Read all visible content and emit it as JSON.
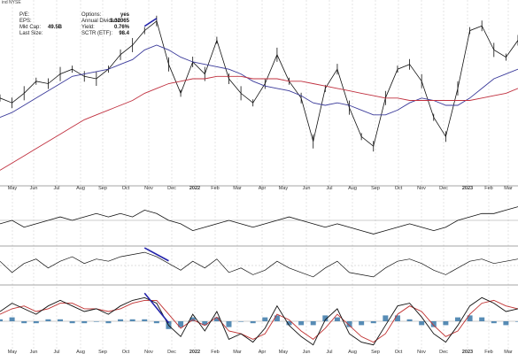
{
  "header_text": "ind NYSE",
  "info_left": [
    {
      "label": "P/E:",
      "value": ""
    },
    {
      "label": "EPS:",
      "value": ""
    },
    {
      "label": "Mkt Cap:",
      "value": "49.5B"
    },
    {
      "label": "Last Size:",
      "value": ""
    }
  ],
  "info_right": [
    {
      "label": "Options:",
      "value": "yes"
    },
    {
      "label": "Annual Dividend:",
      "value": "1.32065"
    },
    {
      "label": "Yield:",
      "value": "0.76%"
    },
    {
      "label": "SCTR (ETF):",
      "value": "98.4"
    }
  ],
  "colors": {
    "price": "#111111",
    "ma_fast": "#3a3a9a",
    "ma_slow": "#c0303f",
    "trendline": "#2222aa",
    "histogram": "#3a78a8",
    "macd_signal": "#c03030",
    "grid": "#cccccc"
  },
  "chart_data": [
    {
      "type": "line",
      "panel": "price",
      "x_tick_labels": [
        "May",
        "Jun",
        "Jul",
        "Aug",
        "Sep",
        "Oct",
        "Nov",
        "Dec",
        "2022",
        "Feb",
        "Mar",
        "Apr",
        "May",
        "Jun",
        "Jul",
        "Aug",
        "Sep",
        "Oct",
        "Nov",
        "Dec",
        "2023",
        "Feb",
        "Mar"
      ],
      "series": [
        {
          "role": "price",
          "values": [
            48,
            46,
            50,
            55,
            54,
            58,
            60,
            57,
            56,
            60,
            66,
            70,
            76,
            80,
            62,
            50,
            63,
            58,
            72,
            56,
            50,
            46,
            54,
            66,
            55,
            48,
            30,
            52,
            60,
            44,
            32,
            28,
            48,
            60,
            62,
            55,
            40,
            32,
            52,
            76,
            78,
            68,
            65,
            72
          ]
        },
        {
          "role": "moving-average-fast",
          "values": [
            40,
            42,
            45,
            48,
            51,
            54,
            57,
            58,
            59,
            60,
            62,
            64,
            68,
            70,
            68,
            65,
            63,
            62,
            61,
            60,
            58,
            55,
            53,
            52,
            51,
            49,
            46,
            45,
            46,
            45,
            43,
            41,
            41,
            43,
            46,
            48,
            47,
            45,
            45,
            48,
            52,
            56,
            58,
            60
          ]
        },
        {
          "role": "moving-average-slow",
          "values": [
            18,
            21,
            24,
            27,
            30,
            33,
            36,
            39,
            41,
            43,
            45,
            47,
            50,
            52,
            54,
            55,
            56,
            56,
            57,
            57,
            57,
            56,
            56,
            56,
            55,
            55,
            54,
            53,
            52,
            51,
            50,
            49,
            48,
            48,
            47,
            47,
            47,
            47,
            47,
            47,
            48,
            49,
            50,
            52
          ]
        }
      ],
      "annotations": [
        {
          "type": "trendline",
          "from_index": 12,
          "to_index": 13
        }
      ]
    },
    {
      "type": "line",
      "panel": "indicator-1",
      "series": [
        {
          "role": "indicator",
          "values": [
            0,
            1,
            -1,
            0,
            1,
            2,
            1,
            2,
            3,
            2,
            3,
            2,
            4,
            3,
            1,
            0,
            -2,
            -1,
            0,
            1,
            0,
            -1,
            0,
            1,
            2,
            1,
            0,
            -1,
            0,
            -1,
            -2,
            -3,
            -2,
            -1,
            0,
            -1,
            -2,
            -1,
            1,
            2,
            3,
            3,
            4,
            5
          ]
        }
      ]
    },
    {
      "type": "line",
      "panel": "indicator-2",
      "series": [
        {
          "role": "indicator",
          "values": [
            2,
            -3,
            1,
            3,
            -1,
            2,
            4,
            1,
            3,
            2,
            4,
            5,
            6,
            4,
            1,
            -2,
            2,
            -1,
            3,
            -3,
            -1,
            -4,
            -2,
            2,
            -1,
            -3,
            -5,
            -1,
            2,
            -3,
            -4,
            -5,
            -1,
            2,
            3,
            1,
            -2,
            -4,
            -1,
            2,
            3,
            1,
            2,
            3
          ]
        }
      ],
      "annotations": [
        {
          "type": "trendline",
          "from_index": 12,
          "to_index": 14
        }
      ]
    },
    {
      "type": "line",
      "panel": "macd",
      "series": [
        {
          "role": "macd",
          "values": [
            3,
            6,
            4,
            2,
            5,
            7,
            5,
            3,
            4,
            2,
            5,
            7,
            8,
            6,
            -2,
            -6,
            2,
            -4,
            3,
            -7,
            -5,
            -8,
            -3,
            5,
            -2,
            -6,
            -9,
            0,
            4,
            -5,
            -8,
            -9,
            -2,
            5,
            6,
            1,
            -5,
            -8,
            -2,
            5,
            8,
            6,
            3,
            4
          ]
        },
        {
          "role": "signal",
          "values": [
            2,
            4,
            5,
            3,
            4,
            6,
            6,
            4,
            4,
            3,
            4,
            6,
            7,
            7,
            2,
            -3,
            0,
            -2,
            1,
            -4,
            -5,
            -7,
            -5,
            2,
            0,
            -4,
            -7,
            -3,
            2,
            -2,
            -6,
            -8,
            -5,
            2,
            5,
            3,
            -2,
            -6,
            -4,
            2,
            6,
            7,
            5,
            4
          ]
        }
      ],
      "annotations": [
        {
          "type": "trendline",
          "from_index": 12,
          "to_index": 14
        }
      ]
    }
  ]
}
